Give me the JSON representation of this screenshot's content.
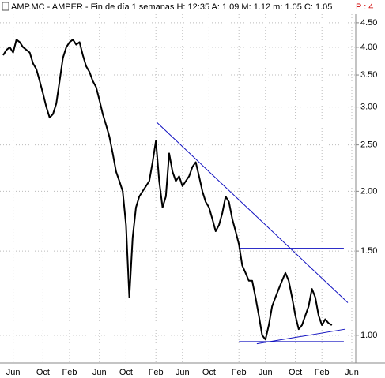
{
  "chart_data": {
    "type": "line",
    "title": "AMP.MC - AMPER - Fin de día 1 semanas  H: 12:35  A: 1.09  M: 1.12  m: 1.05  C: 1.05",
    "annotations": [
      "P : 4"
    ],
    "categories": [
      null,
      null,
      null,
      "Jun",
      null,
      null,
      null,
      null,
      null,
      null,
      null,
      null,
      "Oct",
      null,
      null,
      null,
      null,
      null,
      null,
      null,
      "Feb",
      null,
      null,
      null,
      null,
      null,
      null,
      null,
      null,
      "Jun",
      null,
      null,
      null,
      null,
      null,
      null,
      null,
      "Oct",
      null,
      null,
      null,
      null,
      null,
      null,
      null,
      null,
      "Feb",
      null,
      null,
      null,
      null,
      null,
      null,
      null,
      "Jun",
      null,
      null,
      null,
      null,
      null,
      null,
      null,
      "Oct",
      null,
      null,
      null,
      null,
      null,
      null,
      null,
      null,
      "Feb",
      null,
      null,
      null,
      null,
      null,
      null,
      null,
      "Jun",
      null,
      null,
      null,
      null,
      null,
      null,
      null,
      null,
      "Oct",
      null,
      null,
      null,
      null,
      null,
      null,
      null,
      "Feb",
      null,
      null,
      null,
      null,
      null,
      null,
      null,
      null,
      "Jun"
    ],
    "series": [
      {
        "color": "#000000",
        "values": [
          3.85,
          3.95,
          4.0,
          3.9,
          4.15,
          4.1,
          4.0,
          3.95,
          3.9,
          3.7,
          3.6,
          3.4,
          3.2,
          3.0,
          2.85,
          2.9,
          3.05,
          3.4,
          3.8,
          4.0,
          4.1,
          4.15,
          4.05,
          4.1,
          3.85,
          3.65,
          3.55,
          3.4,
          3.3,
          3.1,
          2.9,
          2.75,
          2.6,
          2.4,
          2.2,
          2.1,
          2.0,
          1.7,
          1.2,
          1.6,
          1.85,
          1.95,
          2.0,
          2.05,
          2.1,
          2.3,
          2.55,
          2.1,
          1.85,
          1.95,
          2.4,
          2.2,
          2.1,
          2.15,
          2.05,
          2.1,
          2.15,
          2.25,
          2.3,
          2.15,
          2.0,
          1.9,
          1.85,
          1.75,
          1.65,
          1.7,
          1.8,
          1.95,
          1.9,
          1.75,
          1.65,
          1.55,
          1.4,
          1.35,
          1.3,
          1.3,
          1.2,
          1.1,
          1.0,
          0.98,
          1.05,
          1.15,
          1.2,
          1.25,
          1.3,
          1.35,
          1.3,
          1.2,
          1.1,
          1.03,
          1.05,
          1.1,
          1.15,
          1.25,
          1.2,
          1.1,
          1.05,
          1.08,
          1.06,
          1.05,
          null,
          null,
          null,
          null,
          null,
          null
        ]
      }
    ],
    "trendlines": {
      "color": "#1010c0",
      "lines": [
        {
          "x": [
            46.2,
            103.8
          ],
          "values": [
            2.79,
            1.17
          ]
        },
        {
          "x": [
            71.2,
            102.6
          ],
          "values": [
            1.52,
            1.52
          ]
        },
        {
          "x": [
            71.0,
            102.6
          ],
          "values": [
            0.97,
            0.97
          ]
        },
        {
          "x": [
            76.4,
            103.1
          ],
          "values": [
            0.96,
            1.03
          ]
        }
      ]
    },
    "log_scale": true,
    "grid": true,
    "ylim": [
      0.875,
      4.69
    ],
    "yticks": [
      {
        "value": 1,
        "label": "1.00"
      },
      {
        "value": 1.5,
        "label": "1.50"
      },
      {
        "value": 2,
        "label": "2.00"
      },
      {
        "value": 2.5,
        "label": "2.50"
      },
      {
        "value": 3,
        "label": "3.00"
      },
      {
        "value": 3.5,
        "label": "3.50"
      },
      {
        "value": 4,
        "label": "4.00"
      },
      {
        "value": 4.5,
        "label": "4.50"
      }
    ]
  }
}
